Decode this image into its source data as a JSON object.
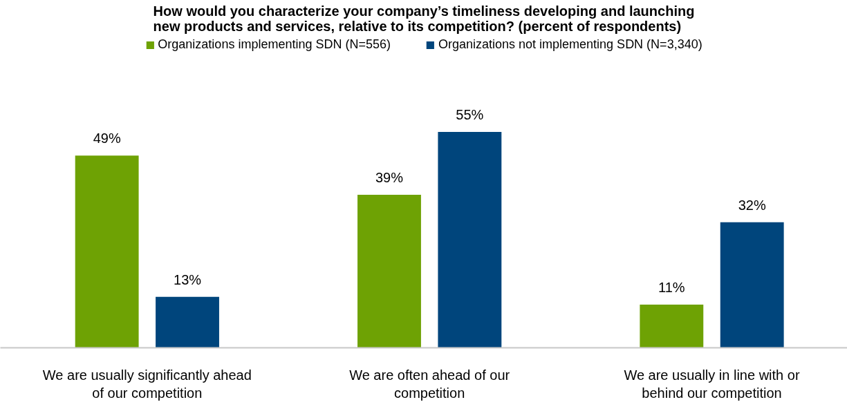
{
  "chart_data": {
    "type": "bar",
    "title": "How would you characterize your company’s timeliness developing and launching new products and services, relative to its competition? (percent of respondents)",
    "categories": [
      "We are usually significantly ahead of our competition",
      "We are often ahead of our competition",
      "We are usually in line with or behind our competition"
    ],
    "series": [
      {
        "name": "Organizations implementing SDN (N=556)",
        "color": "#6ea204",
        "values": [
          49,
          39,
          11
        ],
        "value_labels": [
          "49%",
          "39%",
          "11%"
        ]
      },
      {
        "name": "Organizations not implementing SDN (N=3,340)",
        "color": "#00457c",
        "values": [
          13,
          55,
          32
        ],
        "value_labels": [
          "13%",
          "55%",
          "32%"
        ]
      }
    ],
    "tick_labels": "x",
    "legend": "top"
  }
}
